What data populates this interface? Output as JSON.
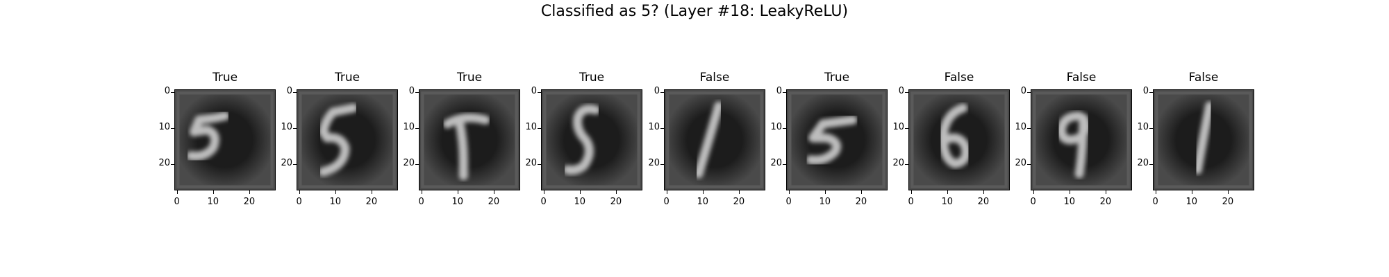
{
  "chart_data": {
    "type": "image_grid",
    "title": "Classified as 5? (Layer #18: LeakyReLU)",
    "panels": [
      {
        "label": "True",
        "digit": "5-slant"
      },
      {
        "label": "True",
        "digit": "5-tall"
      },
      {
        "label": "True",
        "digit": "t-shape"
      },
      {
        "label": "True",
        "digit": "s-shape"
      },
      {
        "label": "False",
        "digit": "one-thick"
      },
      {
        "label": "True",
        "digit": "5-flat"
      },
      {
        "label": "False",
        "digit": "six"
      },
      {
        "label": "False",
        "digit": "nine"
      },
      {
        "label": "False",
        "digit": "one-thin"
      }
    ],
    "x_ticks": [
      "0",
      "10",
      "20"
    ],
    "y_ticks": [
      "0",
      "10",
      "20"
    ],
    "xlim": [
      0,
      27
    ],
    "ylim": [
      27,
      0
    ],
    "colormap": "gray"
  }
}
